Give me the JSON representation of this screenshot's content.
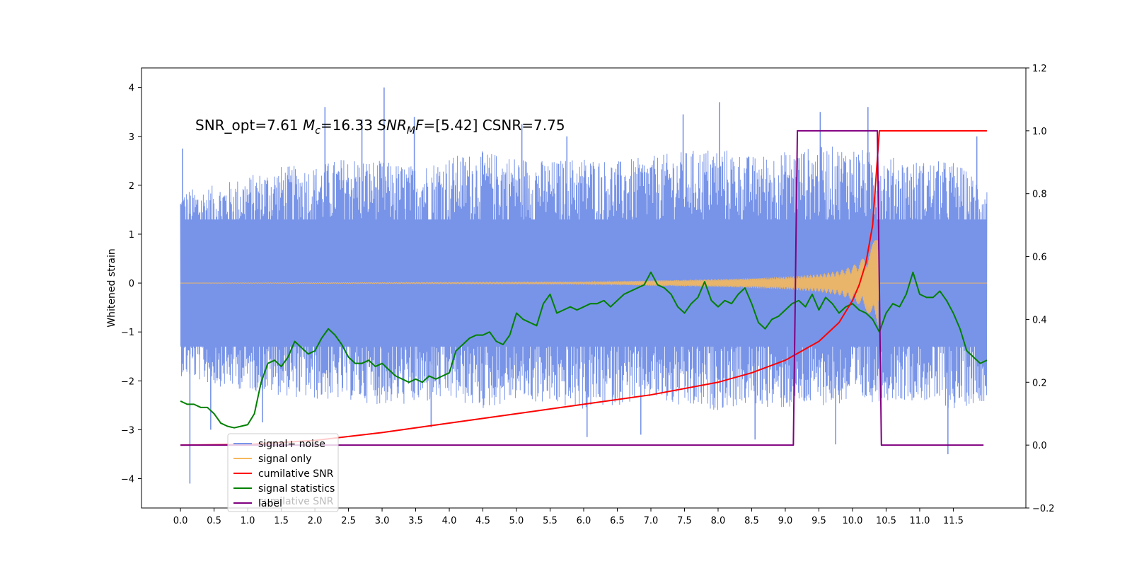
{
  "chart_data": {
    "type": "line",
    "title": "",
    "xlabel": "",
    "ylabel": "Whitened strain",
    "y2label": "",
    "xlim": [
      -0.58,
      12.58
    ],
    "ylim": [
      -4.6,
      4.4
    ],
    "y2lim": [
      -0.2,
      1.2
    ],
    "x_ticks": [
      "0.0",
      "0.5",
      "1.0",
      "1.5",
      "2.0",
      "2.5",
      "3.0",
      "3.5",
      "4.0",
      "4.5",
      "5.0",
      "5.5",
      "6.0",
      "6.5",
      "7.0",
      "7.5",
      "8.0",
      "8.5",
      "9.0",
      "9.5",
      "10.0",
      "10.5",
      "11.0",
      "11.5"
    ],
    "y_ticks": [
      "4",
      "3",
      "2",
      "1",
      "0",
      "−1",
      "−2",
      "−3",
      "−4"
    ],
    "y2_ticks": [
      "1.2",
      "1.0",
      "0.8",
      "0.6",
      "0.4",
      "0.2",
      "0.0",
      "−0.2"
    ],
    "annotation": {
      "part1": "SNR_opt=7.61   ",
      "mc_symbol": "M",
      "mc_sub": "c",
      "mc_value": "=16.33  ",
      "snr_symbol": "SNR",
      "snr_sub": "M",
      "snr_f": "F",
      "snr_value": "=[5.42]   CSNR=7.75"
    },
    "legend": {
      "position": "lower-left",
      "items": [
        {
          "label": "signal+ noise",
          "color": "#7894e8"
        },
        {
          "label": "signal only",
          "color": "#f5b85c"
        },
        {
          "label": "cumilative SNR",
          "color": "#ff0000"
        },
        {
          "label": "signal statistics",
          "color": "#008000"
        },
        {
          "label": "label",
          "color": "#800080"
        }
      ],
      "ghost_text": "cumilative SNR"
    },
    "series": [
      {
        "name": "signal+ noise",
        "axis": "left",
        "color": "#7894e8",
        "envelope": {
          "t": [
            0.0,
            0.5,
            1.0,
            1.5,
            2.0,
            2.5,
            3.0,
            3.5,
            4.0,
            4.5,
            5.0,
            5.5,
            6.0,
            6.5,
            7.0,
            7.5,
            8.0,
            8.5,
            9.0,
            9.5,
            10.0,
            10.5,
            11.0,
            11.5,
            12.0
          ],
          "upper": [
            1.9,
            2.0,
            2.2,
            2.4,
            2.4,
            2.6,
            2.5,
            2.4,
            2.6,
            2.7,
            2.6,
            2.5,
            2.6,
            2.5,
            2.6,
            2.7,
            2.8,
            2.6,
            2.7,
            2.8,
            2.8,
            2.6,
            2.5,
            2.5,
            2.0
          ],
          "lower": [
            -1.9,
            -2.1,
            -2.2,
            -2.3,
            -2.4,
            -2.4,
            -2.5,
            -2.5,
            -2.4,
            -2.6,
            -2.4,
            -2.5,
            -2.6,
            -2.5,
            -2.4,
            -2.6,
            -2.6,
            -2.5,
            -2.6,
            -2.5,
            -2.5,
            -2.4,
            -2.4,
            -2.6,
            -2.4
          ]
        },
        "spikes": [
          {
            "x": 0.03,
            "y": 2.75
          },
          {
            "x": 0.14,
            "y": -4.1
          },
          {
            "x": 0.45,
            "y": -3.0
          },
          {
            "x": 1.22,
            "y": -2.85
          },
          {
            "x": 2.15,
            "y": 3.6
          },
          {
            "x": 2.7,
            "y": 3.35
          },
          {
            "x": 3.03,
            "y": 4.0
          },
          {
            "x": 3.48,
            "y": 3.4
          },
          {
            "x": 3.73,
            "y": -2.95
          },
          {
            "x": 5.08,
            "y": 3.25
          },
          {
            "x": 5.75,
            "y": 3.0
          },
          {
            "x": 6.05,
            "y": -3.15
          },
          {
            "x": 6.85,
            "y": -3.1
          },
          {
            "x": 7.48,
            "y": 3.45
          },
          {
            "x": 8.02,
            "y": 3.7
          },
          {
            "x": 8.55,
            "y": -3.2
          },
          {
            "x": 9.52,
            "y": 3.5
          },
          {
            "x": 9.75,
            "y": -3.3
          },
          {
            "x": 10.23,
            "y": 3.6
          },
          {
            "x": 11.42,
            "y": -3.5
          },
          {
            "x": 11.85,
            "y": 3.0
          }
        ]
      },
      {
        "name": "signal only",
        "axis": "left",
        "color": "#f5b85c",
        "envelope": {
          "t": [
            0.0,
            6.0,
            7.0,
            8.0,
            8.5,
            9.0,
            9.5,
            9.8,
            10.0,
            10.2,
            10.3,
            10.38,
            10.4,
            10.45,
            12.0
          ],
          "amp": [
            0.0,
            0.02,
            0.05,
            0.08,
            0.1,
            0.13,
            0.18,
            0.25,
            0.35,
            0.55,
            0.8,
            1.0,
            0.0,
            0.0,
            0.0
          ]
        }
      },
      {
        "name": "cumilative SNR",
        "axis": "right",
        "color": "#ff0000",
        "x": [
          0.0,
          1.0,
          2.0,
          3.0,
          4.0,
          5.0,
          6.0,
          7.0,
          8.0,
          8.5,
          9.0,
          9.5,
          9.8,
          10.0,
          10.1,
          10.2,
          10.3,
          10.35,
          10.4,
          11.0,
          11.5,
          12.0
        ],
        "y": [
          0.0,
          0.002,
          0.015,
          0.04,
          0.07,
          0.1,
          0.13,
          0.16,
          0.2,
          0.23,
          0.27,
          0.33,
          0.39,
          0.46,
          0.51,
          0.58,
          0.7,
          0.85,
          1.0,
          1.0,
          1.0,
          1.0
        ]
      },
      {
        "name": "signal statistics",
        "axis": "right",
        "color": "#008000",
        "x": [
          0.0,
          0.1,
          0.2,
          0.3,
          0.4,
          0.5,
          0.6,
          0.7,
          0.8,
          0.9,
          1.0,
          1.1,
          1.2,
          1.3,
          1.4,
          1.5,
          1.6,
          1.7,
          1.8,
          1.9,
          2.0,
          2.1,
          2.2,
          2.3,
          2.4,
          2.5,
          2.6,
          2.7,
          2.8,
          2.9,
          3.0,
          3.1,
          3.2,
          3.3,
          3.4,
          3.5,
          3.6,
          3.7,
          3.8,
          3.9,
          4.0,
          4.1,
          4.2,
          4.3,
          4.4,
          4.5,
          4.6,
          4.7,
          4.8,
          4.9,
          5.0,
          5.1,
          5.2,
          5.3,
          5.4,
          5.5,
          5.6,
          5.7,
          5.8,
          5.9,
          6.0,
          6.1,
          6.2,
          6.3,
          6.4,
          6.5,
          6.6,
          6.7,
          6.8,
          6.9,
          7.0,
          7.1,
          7.2,
          7.3,
          7.4,
          7.5,
          7.6,
          7.7,
          7.8,
          7.9,
          8.0,
          8.1,
          8.2,
          8.3,
          8.4,
          8.5,
          8.6,
          8.7,
          8.8,
          8.9,
          9.0,
          9.1,
          9.2,
          9.3,
          9.4,
          9.5,
          9.6,
          9.7,
          9.8,
          9.9,
          10.0,
          10.1,
          10.2,
          10.3,
          10.4,
          10.5,
          10.6,
          10.7,
          10.8,
          10.9,
          11.0,
          11.1,
          11.2,
          11.3,
          11.4,
          11.5,
          11.6,
          11.7,
          11.8,
          11.9,
          12.0
        ],
        "y": [
          0.14,
          0.13,
          0.13,
          0.12,
          0.12,
          0.1,
          0.07,
          0.06,
          0.055,
          0.06,
          0.065,
          0.1,
          0.2,
          0.26,
          0.27,
          0.25,
          0.28,
          0.33,
          0.31,
          0.29,
          0.3,
          0.34,
          0.37,
          0.35,
          0.32,
          0.28,
          0.26,
          0.26,
          0.27,
          0.25,
          0.26,
          0.24,
          0.22,
          0.21,
          0.2,
          0.21,
          0.2,
          0.22,
          0.21,
          0.22,
          0.23,
          0.3,
          0.32,
          0.34,
          0.35,
          0.35,
          0.36,
          0.33,
          0.32,
          0.35,
          0.42,
          0.4,
          0.39,
          0.38,
          0.45,
          0.48,
          0.42,
          0.43,
          0.44,
          0.43,
          0.44,
          0.45,
          0.45,
          0.46,
          0.44,
          0.46,
          0.48,
          0.49,
          0.5,
          0.51,
          0.55,
          0.51,
          0.5,
          0.48,
          0.44,
          0.42,
          0.45,
          0.47,
          0.52,
          0.46,
          0.44,
          0.46,
          0.45,
          0.48,
          0.5,
          0.45,
          0.39,
          0.37,
          0.4,
          0.41,
          0.43,
          0.45,
          0.46,
          0.44,
          0.48,
          0.43,
          0.47,
          0.45,
          0.42,
          0.44,
          0.45,
          0.43,
          0.42,
          0.4,
          0.36,
          0.42,
          0.45,
          0.44,
          0.48,
          0.55,
          0.48,
          0.47,
          0.47,
          0.49,
          0.46,
          0.42,
          0.37,
          0.3,
          0.28,
          0.26,
          0.27
        ]
      },
      {
        "name": "label",
        "axis": "right",
        "color": "#800080",
        "x": [
          0.0,
          9.12,
          9.18,
          10.37,
          10.43,
          11.95
        ],
        "y": [
          0.0,
          0.0,
          1.0,
          1.0,
          0.0,
          0.0
        ]
      }
    ]
  }
}
